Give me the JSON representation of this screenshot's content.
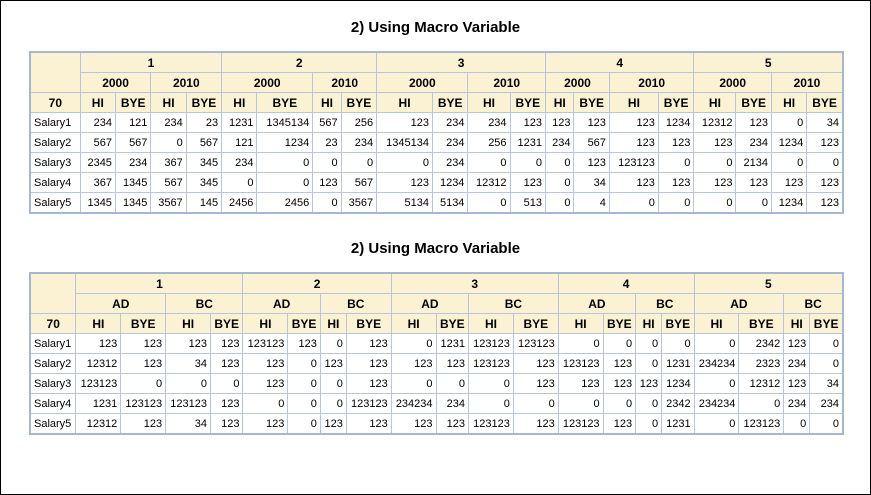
{
  "sections": [
    {
      "title": "2) Using Macro Variable",
      "corner": "70",
      "groups": [
        "1",
        "2",
        "3",
        "4",
        "5"
      ],
      "subgroups": [
        "2000",
        "2010"
      ],
      "columns": [
        "HI",
        "BYE"
      ],
      "rows": [
        {
          "label": "Salary1",
          "values": [
            234,
            121,
            234,
            23,
            1231,
            1345134,
            567,
            256,
            123,
            234,
            234,
            123,
            123,
            123,
            123,
            1234,
            12312,
            123,
            0,
            34
          ]
        },
        {
          "label": "Salary2",
          "values": [
            567,
            567,
            0,
            567,
            121,
            1234,
            23,
            234,
            1345134,
            234,
            256,
            1231,
            234,
            567,
            123,
            123,
            123,
            234,
            1234,
            123
          ]
        },
        {
          "label": "Salary3",
          "values": [
            2345,
            234,
            367,
            345,
            234,
            0,
            0,
            0,
            0,
            234,
            0,
            0,
            0,
            123,
            123123,
            0,
            0,
            2134,
            0,
            0
          ]
        },
        {
          "label": "Salary4",
          "values": [
            367,
            1345,
            567,
            345,
            0,
            0,
            123,
            567,
            123,
            1234,
            12312,
            123,
            0,
            34,
            123,
            123,
            123,
            123,
            123,
            123
          ]
        },
        {
          "label": "Salary5",
          "values": [
            1345,
            1345,
            3567,
            145,
            2456,
            2456,
            0,
            3567,
            5134,
            5134,
            0,
            513,
            0,
            4,
            0,
            0,
            0,
            0,
            1234,
            123
          ]
        }
      ]
    },
    {
      "title": "2) Using Macro Variable",
      "corner": "70",
      "groups": [
        "1",
        "2",
        "3",
        "4",
        "5"
      ],
      "subgroups": [
        "AD",
        "BC"
      ],
      "columns": [
        "HI",
        "BYE"
      ],
      "rows": [
        {
          "label": "Salary1",
          "values": [
            123,
            123,
            123,
            123,
            123123,
            123,
            0,
            123,
            0,
            1231,
            123123,
            123123,
            0,
            0,
            0,
            0,
            0,
            2342,
            123,
            0
          ]
        },
        {
          "label": "Salary2",
          "values": [
            12312,
            123,
            34,
            123,
            123,
            0,
            123,
            123,
            123,
            123,
            123123,
            123,
            123123,
            123,
            0,
            1231,
            234234,
            2323,
            234,
            0
          ]
        },
        {
          "label": "Salary3",
          "values": [
            123123,
            0,
            0,
            0,
            123,
            0,
            0,
            123,
            0,
            0,
            0,
            123,
            123,
            123,
            123,
            1234,
            0,
            12312,
            123,
            34
          ]
        },
        {
          "label": "Salary4",
          "values": [
            1231,
            123123,
            123123,
            123,
            0,
            0,
            0,
            123123,
            234234,
            234,
            0,
            0,
            0,
            0,
            0,
            2342,
            234234,
            0,
            234,
            234
          ]
        },
        {
          "label": "Salary5",
          "values": [
            12312,
            123,
            34,
            123,
            123,
            0,
            123,
            123,
            123,
            123,
            123123,
            123,
            123123,
            123,
            0,
            1231,
            0,
            123123,
            0,
            0
          ]
        }
      ]
    }
  ]
}
